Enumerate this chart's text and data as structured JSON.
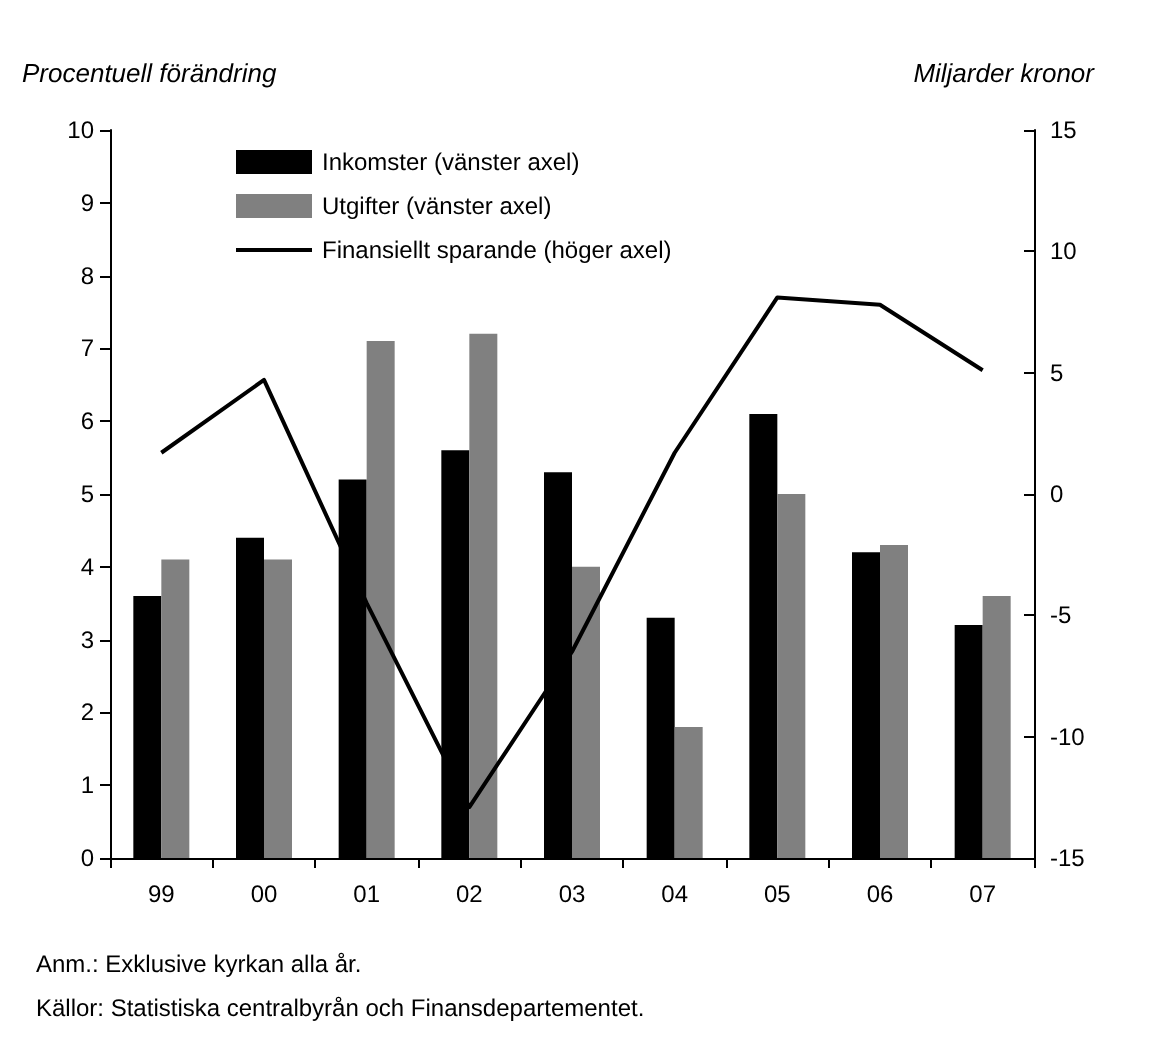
{
  "chart_data": {
    "type": "bar",
    "ylabel": "Procentuell förändring",
    "y2label": "Miljarder kronor",
    "categories": [
      "99",
      "00",
      "01",
      "02",
      "03",
      "04",
      "05",
      "06",
      "07"
    ],
    "series": [
      {
        "name": "Inkomster (vänster axel)",
        "color": "#000000",
        "values": [
          3.6,
          4.4,
          5.2,
          5.6,
          5.3,
          3.3,
          6.1,
          4.2,
          3.2
        ]
      },
      {
        "name": "Utgifter (vänster axel)",
        "color": "#808080",
        "values": [
          4.1,
          4.1,
          7.1,
          7.2,
          4.0,
          1.8,
          5.0,
          4.3,
          3.6
        ]
      },
      {
        "name": "Finansiellt sparande (höger axel)",
        "type": "line",
        "axis": "y2",
        "color": "#000000",
        "values": [
          1.7,
          4.7,
          -4.5,
          -12.9,
          -6.5,
          1.7,
          8.1,
          7.8,
          5.1
        ]
      }
    ],
    "ylim": [
      0,
      10
    ],
    "yticks": [
      0,
      1,
      2,
      3,
      4,
      5,
      6,
      7,
      8,
      9,
      10
    ],
    "y2lim": [
      -15,
      15
    ],
    "y2ticks": [
      -15,
      -10,
      -5,
      0,
      5,
      10,
      15
    ],
    "grid": false,
    "legend": "top left",
    "marker": "none",
    "line_style": "solid",
    "annotations": [
      "Anm.: Exklusive kyrkan alla år.",
      "Källor: Statistiska centralbyrån och Finansdepartementet."
    ]
  }
}
